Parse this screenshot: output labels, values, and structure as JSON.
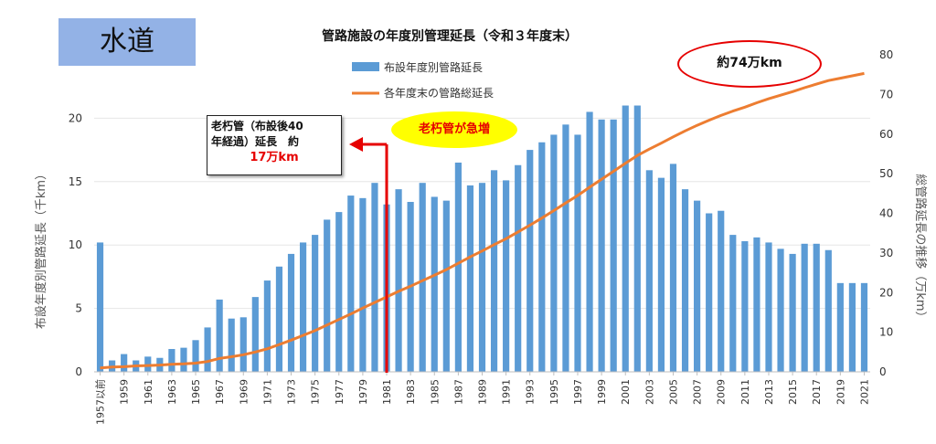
{
  "tag_label": "水道",
  "chart_data": {
    "type": "bar",
    "title": "管路施設の年度別管理延長（令和３年度末）",
    "ylabel": "布設年度別管路延長（千km）",
    "y2label": "総管路延長の推移（万km）",
    "ylim": [
      0,
      25
    ],
    "y2lim": [
      0,
      80
    ],
    "yticks": [
      0,
      5,
      10,
      15,
      20
    ],
    "y2ticks": [
      0,
      10,
      20,
      30,
      40,
      50,
      60,
      70,
      80
    ],
    "legend": {
      "bar": "布設年度別管路延長",
      "line": "各年度末の管路総延長",
      "placement": "top-center"
    },
    "categories": [
      "1957以前",
      "1958",
      "1959",
      "1960",
      "1961",
      "1962",
      "1963",
      "1964",
      "1965",
      "1966",
      "1967",
      "1968",
      "1969",
      "1970",
      "1971",
      "1972",
      "1973",
      "1974",
      "1975",
      "1976",
      "1977",
      "1978",
      "1979",
      "1980",
      "1981",
      "1982",
      "1983",
      "1984",
      "1985",
      "1986",
      "1987",
      "1988",
      "1989",
      "1990",
      "1991",
      "1992",
      "1993",
      "1994",
      "1995",
      "1996",
      "1997",
      "1998",
      "1999",
      "2000",
      "2001",
      "2002",
      "2003",
      "2004",
      "2005",
      "2006",
      "2007",
      "2008",
      "2009",
      "2010",
      "2011",
      "2012",
      "2013",
      "2014",
      "2015",
      "2016",
      "2017",
      "2018",
      "2019",
      "2020",
      "2021"
    ],
    "xtick_labels": [
      "1957以前",
      "1959",
      "1961",
      "1963",
      "1965",
      "1967",
      "1969",
      "1971",
      "1973",
      "1975",
      "1977",
      "1979",
      "1981",
      "1983",
      "1985",
      "1987",
      "1989",
      "1991",
      "1993",
      "1995",
      "1997",
      "1999",
      "2001",
      "2003",
      "2005",
      "2007",
      "2009",
      "2011",
      "2013",
      "2015",
      "2017",
      "2019",
      "2021"
    ],
    "series": [
      {
        "kind": "bar",
        "color": "#5b9bd5",
        "values": [
          10.2,
          0.9,
          1.4,
          0.9,
          1.2,
          1.1,
          1.8,
          1.9,
          2.5,
          3.5,
          5.7,
          4.2,
          4.3,
          5.9,
          7.2,
          8.3,
          9.3,
          10.2,
          10.8,
          12.0,
          12.6,
          13.9,
          13.7,
          14.9,
          13.2,
          14.4,
          13.4,
          14.9,
          13.8,
          13.5,
          16.5,
          14.7,
          14.9,
          15.9,
          15.1,
          16.3,
          17.5,
          18.1,
          18.7,
          19.5,
          18.7,
          20.5,
          19.9,
          19.9,
          21.0,
          21.0,
          15.9,
          15.3,
          16.4,
          14.4,
          13.5,
          12.5,
          12.7,
          10.8,
          10.3,
          10.6,
          10.2,
          9.7,
          9.3,
          10.1,
          10.1,
          9.6,
          7.0,
          7.0,
          7.0
        ]
      },
      {
        "kind": "line",
        "axis": "right",
        "color": "#ed7d31",
        "values": [
          1.0,
          1.2,
          1.3,
          1.5,
          1.6,
          1.7,
          1.9,
          2.0,
          2.2,
          2.6,
          3.4,
          3.8,
          4.3,
          5.0,
          5.8,
          6.9,
          8.0,
          9.2,
          10.4,
          11.8,
          13.2,
          14.6,
          16.1,
          17.5,
          18.9,
          20.3,
          21.6,
          23.0,
          24.4,
          25.8,
          27.4,
          29.0,
          30.5,
          32.1,
          33.6,
          35.3,
          37.0,
          38.8,
          40.7,
          42.6,
          44.5,
          46.6,
          48.6,
          50.6,
          52.6,
          54.6,
          56.2,
          57.7,
          59.3,
          60.8,
          62.2,
          63.5,
          64.7,
          65.8,
          66.8,
          67.9,
          68.9,
          69.8,
          70.7,
          71.7,
          72.6,
          73.5,
          74.1,
          74.7,
          75.3
        ]
      }
    ],
    "annotations": {
      "callout": {
        "line1": "老朽管（布設後40",
        "line2": "年経過）延長　約",
        "value": "17万km",
        "marker_category": "1981",
        "arrow_color": "#e60000"
      },
      "bubble": {
        "text": "老朽管が急増",
        "fill": "#ffff00",
        "text_color": "#e60000"
      },
      "total": {
        "text": "約74万km",
        "border": "#e60000"
      }
    }
  }
}
